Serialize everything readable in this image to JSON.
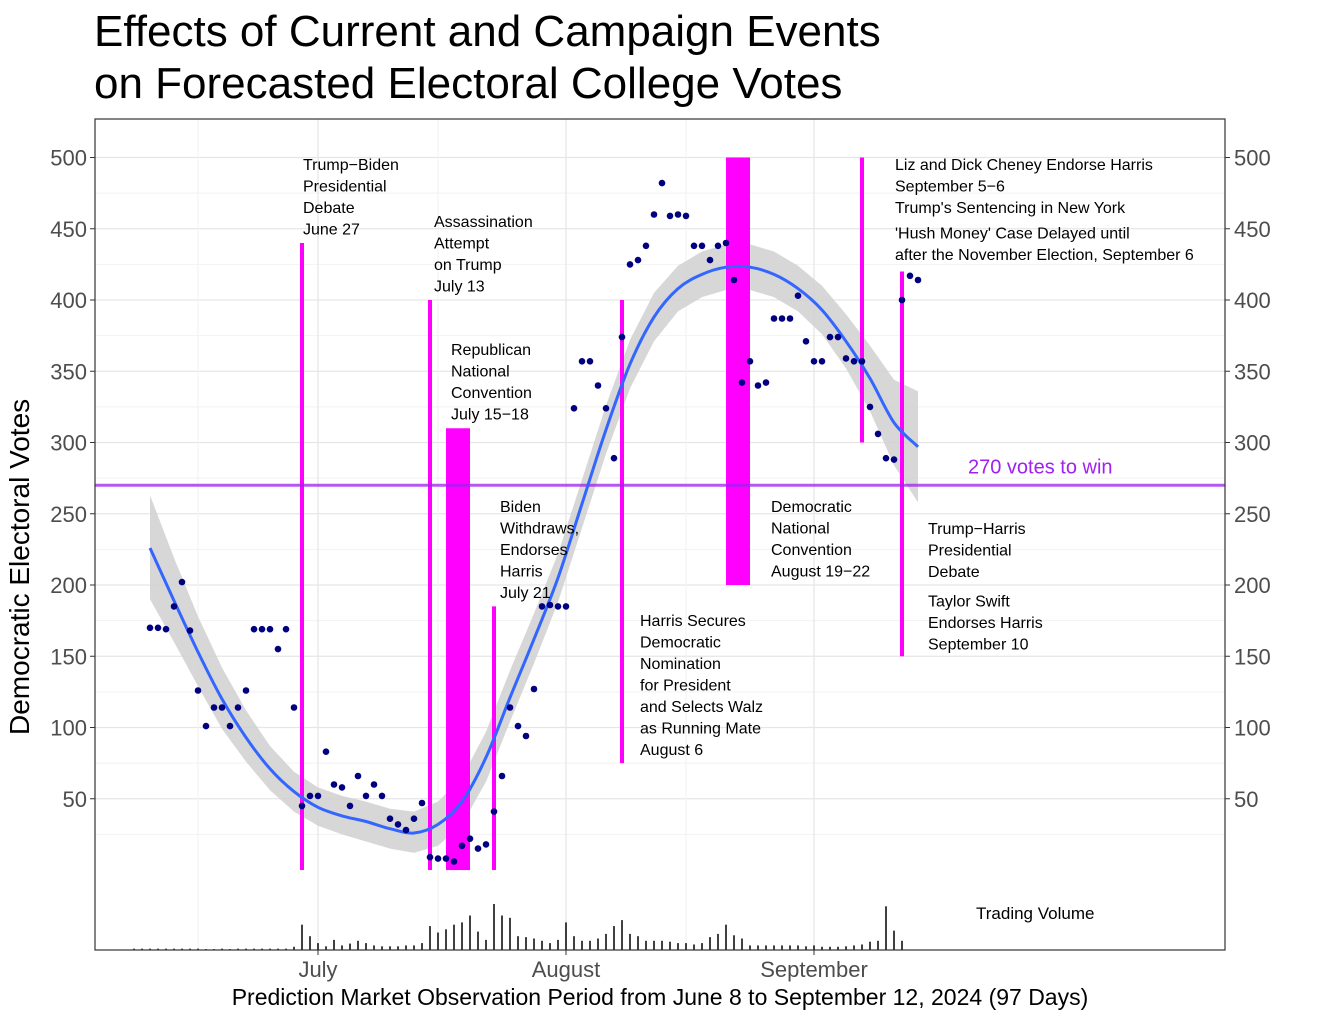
{
  "title_lines": [
    "Effects of Current and Campaign Events",
    "on Forecasted Electoral College Votes"
  ],
  "colors": {
    "event": "#ff00ff",
    "threshold": "#a020f0",
    "points": "#000080",
    "smooth": "#3366ff",
    "band": "#d0d0d0",
    "volume": "#000000"
  },
  "chart_data": {
    "type": "scatter",
    "title": "Effects of Current and Campaign Events on Forecasted Electoral College Votes",
    "xlabel": "Prediction Market Observation Period from June 8 to September 12, 2024 (97 Days)",
    "ylabel": "Democratic Electoral Votes",
    "x_domain": [
      "2024-06-08",
      "2024-09-12"
    ],
    "ylim": [
      -55,
      525
    ],
    "y_ticks": [
      50,
      100,
      150,
      200,
      250,
      300,
      350,
      400,
      450,
      500
    ],
    "x_ticks": [
      {
        "date": "2024-07-01",
        "label": "July"
      },
      {
        "date": "2024-08-01",
        "label": "August"
      },
      {
        "date": "2024-09-01",
        "label": "September"
      }
    ],
    "grid": true,
    "threshold": {
      "value": 270,
      "label": "270 votes to win"
    },
    "points": [
      [
        "2024-06-10",
        170
      ],
      [
        "2024-06-11",
        170
      ],
      [
        "2024-06-12",
        169
      ],
      [
        "2024-06-13",
        185
      ],
      [
        "2024-06-14",
        202
      ],
      [
        "2024-06-15",
        168
      ],
      [
        "2024-06-16",
        126
      ],
      [
        "2024-06-17",
        101
      ],
      [
        "2024-06-18",
        114
      ],
      [
        "2024-06-19",
        114
      ],
      [
        "2024-06-20",
        101
      ],
      [
        "2024-06-21",
        114
      ],
      [
        "2024-06-22",
        126
      ],
      [
        "2024-06-23",
        169
      ],
      [
        "2024-06-24",
        169
      ],
      [
        "2024-06-25",
        169
      ],
      [
        "2024-06-26",
        155
      ],
      [
        "2024-06-27",
        169
      ],
      [
        "2024-06-28",
        114
      ],
      [
        "2024-06-29",
        45
      ],
      [
        "2024-06-30",
        52
      ],
      [
        "2024-07-01",
        52
      ],
      [
        "2024-07-02",
        83
      ],
      [
        "2024-07-03",
        60
      ],
      [
        "2024-07-04",
        58
      ],
      [
        "2024-07-05",
        45
      ],
      [
        "2024-07-06",
        66
      ],
      [
        "2024-07-07",
        52
      ],
      [
        "2024-07-08",
        60
      ],
      [
        "2024-07-09",
        52
      ],
      [
        "2024-07-10",
        36
      ],
      [
        "2024-07-11",
        32
      ],
      [
        "2024-07-12",
        28
      ],
      [
        "2024-07-13",
        36
      ],
      [
        "2024-07-14",
        47
      ],
      [
        "2024-07-15",
        9
      ],
      [
        "2024-07-16",
        8
      ],
      [
        "2024-07-17",
        8
      ],
      [
        "2024-07-18",
        6
      ],
      [
        "2024-07-19",
        17
      ],
      [
        "2024-07-20",
        22
      ],
      [
        "2024-07-21",
        15
      ],
      [
        "2024-07-22",
        18
      ],
      [
        "2024-07-23",
        41
      ],
      [
        "2024-07-24",
        66
      ],
      [
        "2024-07-25",
        114
      ],
      [
        "2024-07-26",
        101
      ],
      [
        "2024-07-27",
        94
      ],
      [
        "2024-07-28",
        127
      ],
      [
        "2024-07-29",
        185
      ],
      [
        "2024-07-30",
        186
      ],
      [
        "2024-07-31",
        185
      ],
      [
        "2024-08-01",
        185
      ],
      [
        "2024-08-02",
        324
      ],
      [
        "2024-08-03",
        357
      ],
      [
        "2024-08-04",
        357
      ],
      [
        "2024-08-05",
        340
      ],
      [
        "2024-08-06",
        324
      ],
      [
        "2024-08-07",
        289
      ],
      [
        "2024-08-08",
        374
      ],
      [
        "2024-08-09",
        425
      ],
      [
        "2024-08-10",
        428
      ],
      [
        "2024-08-11",
        438
      ],
      [
        "2024-08-12",
        460
      ],
      [
        "2024-08-13",
        482
      ],
      [
        "2024-08-14",
        459
      ],
      [
        "2024-08-15",
        460
      ],
      [
        "2024-08-16",
        459
      ],
      [
        "2024-08-17",
        438
      ],
      [
        "2024-08-18",
        438
      ],
      [
        "2024-08-19",
        428
      ],
      [
        "2024-08-20",
        438
      ],
      [
        "2024-08-21",
        440
      ],
      [
        "2024-08-22",
        414
      ],
      [
        "2024-08-23",
        342
      ],
      [
        "2024-08-24",
        357
      ],
      [
        "2024-08-25",
        340
      ],
      [
        "2024-08-26",
        342
      ],
      [
        "2024-08-27",
        387
      ],
      [
        "2024-08-28",
        387
      ],
      [
        "2024-08-29",
        387
      ],
      [
        "2024-08-30",
        403
      ],
      [
        "2024-08-31",
        371
      ],
      [
        "2024-09-01",
        357
      ],
      [
        "2024-09-02",
        357
      ],
      [
        "2024-09-03",
        374
      ],
      [
        "2024-09-04",
        374
      ],
      [
        "2024-09-05",
        359
      ],
      [
        "2024-09-06",
        357
      ],
      [
        "2024-09-07",
        357
      ],
      [
        "2024-09-08",
        325
      ],
      [
        "2024-09-09",
        306
      ],
      [
        "2024-09-10",
        289
      ],
      [
        "2024-09-11",
        288
      ],
      [
        "2024-09-12",
        400
      ],
      [
        "2024-09-13",
        417
      ],
      [
        "2024-09-14",
        414
      ]
    ],
    "smooth": [
      [
        "2024-06-10",
        226
      ],
      [
        "2024-06-13",
        189
      ],
      [
        "2024-06-16",
        153
      ],
      [
        "2024-06-19",
        120
      ],
      [
        "2024-06-22",
        93
      ],
      [
        "2024-06-25",
        71
      ],
      [
        "2024-06-28",
        55
      ],
      [
        "2024-07-01",
        44
      ],
      [
        "2024-07-04",
        38
      ],
      [
        "2024-07-07",
        34
      ],
      [
        "2024-07-10",
        29
      ],
      [
        "2024-07-13",
        26
      ],
      [
        "2024-07-16",
        32
      ],
      [
        "2024-07-19",
        48
      ],
      [
        "2024-07-22",
        79
      ],
      [
        "2024-07-25",
        121
      ],
      [
        "2024-07-28",
        162
      ],
      [
        "2024-07-31",
        205
      ],
      [
        "2024-08-03",
        257
      ],
      [
        "2024-08-06",
        309
      ],
      [
        "2024-08-09",
        355
      ],
      [
        "2024-08-12",
        388
      ],
      [
        "2024-08-15",
        408
      ],
      [
        "2024-08-18",
        418
      ],
      [
        "2024-08-21",
        423
      ],
      [
        "2024-08-24",
        423
      ],
      [
        "2024-08-27",
        418
      ],
      [
        "2024-08-30",
        408
      ],
      [
        "2024-09-02",
        393
      ],
      [
        "2024-09-05",
        371
      ],
      [
        "2024-09-08",
        345
      ],
      [
        "2024-09-11",
        314
      ],
      [
        "2024-09-14",
        297
      ]
    ],
    "band": [
      [
        "2024-06-10",
        190,
        263
      ],
      [
        "2024-06-13",
        160,
        219
      ],
      [
        "2024-06-16",
        129,
        178
      ],
      [
        "2024-06-19",
        99,
        142
      ],
      [
        "2024-06-22",
        76,
        112
      ],
      [
        "2024-06-25",
        56,
        87
      ],
      [
        "2024-06-28",
        41,
        69
      ],
      [
        "2024-07-01",
        31,
        58
      ],
      [
        "2024-07-04",
        25,
        52
      ],
      [
        "2024-07-07",
        20,
        48
      ],
      [
        "2024-07-10",
        15,
        43
      ],
      [
        "2024-07-13",
        12,
        41
      ],
      [
        "2024-07-16",
        17,
        48
      ],
      [
        "2024-07-19",
        32,
        65
      ],
      [
        "2024-07-22",
        62,
        97
      ],
      [
        "2024-07-25",
        104,
        140
      ],
      [
        "2024-07-28",
        145,
        180
      ],
      [
        "2024-07-31",
        188,
        222
      ],
      [
        "2024-08-03",
        240,
        274
      ],
      [
        "2024-08-06",
        292,
        326
      ],
      [
        "2024-08-09",
        338,
        372
      ],
      [
        "2024-08-12",
        371,
        405
      ],
      [
        "2024-08-15",
        392,
        424
      ],
      [
        "2024-08-18",
        402,
        434
      ],
      [
        "2024-08-21",
        407,
        439
      ],
      [
        "2024-08-24",
        407,
        439
      ],
      [
        "2024-08-27",
        402,
        434
      ],
      [
        "2024-08-30",
        392,
        424
      ],
      [
        "2024-09-02",
        376,
        410
      ],
      [
        "2024-09-05",
        352,
        390
      ],
      [
        "2024-09-08",
        322,
        368
      ],
      [
        "2024-09-11",
        284,
        344
      ],
      [
        "2024-09-14",
        258,
        336
      ]
    ],
    "events": [
      {
        "start": "2024-06-29",
        "end": "2024-06-29",
        "ymin": 0,
        "ymax": 440,
        "lines": [
          "Trump−Biden",
          "Presidential",
          "Debate",
          "June 27"
        ]
      },
      {
        "start": "2024-07-15",
        "end": "2024-07-15",
        "ymin": 0,
        "ymax": 400,
        "lines": [
          "Assassination",
          "Attempt",
          "on Trump",
          "July 13"
        ]
      },
      {
        "start": "2024-07-17",
        "end": "2024-07-20",
        "ymin": 0,
        "ymax": 310,
        "lines": [
          "Republican",
          "National",
          "Convention",
          "July 15−18"
        ]
      },
      {
        "start": "2024-07-23",
        "end": "2024-07-23",
        "ymin": 0,
        "ymax": 185,
        "lines": [
          "Biden",
          "Withdraws,",
          "Endorses",
          "Harris",
          "July 21"
        ]
      },
      {
        "start": "2024-08-08",
        "end": "2024-08-08",
        "ymin": 75,
        "ymax": 400,
        "lines": [
          "Harris Secures",
          "Democratic",
          "Nomination",
          "for President",
          "and Selects Walz",
          "as Running Mate",
          "August 6"
        ]
      },
      {
        "start": "2024-08-21",
        "end": "2024-08-24",
        "ymin": 200,
        "ymax": 500,
        "lines": [
          "Democratic",
          "National",
          "Convention",
          "August 19−22"
        ]
      },
      {
        "start": "2024-09-07",
        "end": "2024-09-07",
        "ymin": 300,
        "ymax": 500,
        "lines": [
          "Liz and Dick Cheney Endorse Harris",
          "September 5−6",
          "Trump's Sentencing in New York",
          "'Hush Money' Case Delayed until",
          "after the November Election, September 6"
        ]
      },
      {
        "start": "2024-09-12",
        "end": "2024-09-12",
        "ymin": 150,
        "ymax": 420,
        "lines": [
          "Trump−Harris",
          "Presidential",
          "Debate",
          "Taylor Swift",
          "Endorses Harris",
          "September 10"
        ]
      }
    ],
    "volume": {
      "label": "Trading Volume",
      "values": [
        [
          "2024-06-08",
          0.03
        ],
        [
          "2024-06-09",
          0.03
        ],
        [
          "2024-06-10",
          0.03
        ],
        [
          "2024-06-11",
          0.03
        ],
        [
          "2024-06-12",
          0.03
        ],
        [
          "2024-06-13",
          0.03
        ],
        [
          "2024-06-14",
          0.03
        ],
        [
          "2024-06-15",
          0.03
        ],
        [
          "2024-06-16",
          0.03
        ],
        [
          "2024-06-17",
          0.02
        ],
        [
          "2024-06-18",
          0.02
        ],
        [
          "2024-06-19",
          0.03
        ],
        [
          "2024-06-20",
          0.02
        ],
        [
          "2024-06-21",
          0.03
        ],
        [
          "2024-06-22",
          0.03
        ],
        [
          "2024-06-23",
          0.03
        ],
        [
          "2024-06-24",
          0.03
        ],
        [
          "2024-06-25",
          0.03
        ],
        [
          "2024-06-26",
          0.03
        ],
        [
          "2024-06-27",
          0.03
        ],
        [
          "2024-06-28",
          0.07
        ],
        [
          "2024-06-29",
          0.55
        ],
        [
          "2024-06-30",
          0.3
        ],
        [
          "2024-07-01",
          0.15
        ],
        [
          "2024-07-02",
          0.08
        ],
        [
          "2024-07-03",
          0.22
        ],
        [
          "2024-07-04",
          0.1
        ],
        [
          "2024-07-05",
          0.14
        ],
        [
          "2024-07-06",
          0.2
        ],
        [
          "2024-07-07",
          0.15
        ],
        [
          "2024-07-08",
          0.1
        ],
        [
          "2024-07-09",
          0.08
        ],
        [
          "2024-07-10",
          0.08
        ],
        [
          "2024-07-11",
          0.08
        ],
        [
          "2024-07-12",
          0.1
        ],
        [
          "2024-07-13",
          0.1
        ],
        [
          "2024-07-14",
          0.15
        ],
        [
          "2024-07-15",
          0.52
        ],
        [
          "2024-07-16",
          0.38
        ],
        [
          "2024-07-17",
          0.45
        ],
        [
          "2024-07-18",
          0.55
        ],
        [
          "2024-07-19",
          0.6
        ],
        [
          "2024-07-20",
          0.75
        ],
        [
          "2024-07-21",
          0.4
        ],
        [
          "2024-07-22",
          0.22
        ],
        [
          "2024-07-23",
          1.0
        ],
        [
          "2024-07-24",
          0.75
        ],
        [
          "2024-07-25",
          0.7
        ],
        [
          "2024-07-26",
          0.3
        ],
        [
          "2024-07-27",
          0.28
        ],
        [
          "2024-07-28",
          0.25
        ],
        [
          "2024-07-29",
          0.2
        ],
        [
          "2024-07-30",
          0.15
        ],
        [
          "2024-07-31",
          0.22
        ],
        [
          "2024-08-01",
          0.6
        ],
        [
          "2024-08-02",
          0.3
        ],
        [
          "2024-08-03",
          0.2
        ],
        [
          "2024-08-04",
          0.2
        ],
        [
          "2024-08-05",
          0.25
        ],
        [
          "2024-08-06",
          0.35
        ],
        [
          "2024-08-07",
          0.52
        ],
        [
          "2024-08-08",
          0.65
        ],
        [
          "2024-08-09",
          0.35
        ],
        [
          "2024-08-10",
          0.3
        ],
        [
          "2024-08-11",
          0.2
        ],
        [
          "2024-08-12",
          0.2
        ],
        [
          "2024-08-13",
          0.2
        ],
        [
          "2024-08-14",
          0.18
        ],
        [
          "2024-08-15",
          0.15
        ],
        [
          "2024-08-16",
          0.15
        ],
        [
          "2024-08-17",
          0.12
        ],
        [
          "2024-08-18",
          0.15
        ],
        [
          "2024-08-19",
          0.28
        ],
        [
          "2024-08-20",
          0.35
        ],
        [
          "2024-08-21",
          0.55
        ],
        [
          "2024-08-22",
          0.32
        ],
        [
          "2024-08-23",
          0.25
        ],
        [
          "2024-08-24",
          0.1
        ],
        [
          "2024-08-25",
          0.1
        ],
        [
          "2024-08-26",
          0.1
        ],
        [
          "2024-08-27",
          0.1
        ],
        [
          "2024-08-28",
          0.1
        ],
        [
          "2024-08-29",
          0.1
        ],
        [
          "2024-08-30",
          0.1
        ],
        [
          "2024-08-31",
          0.08
        ],
        [
          "2024-09-01",
          0.1
        ],
        [
          "2024-09-02",
          0.07
        ],
        [
          "2024-09-03",
          0.07
        ],
        [
          "2024-09-04",
          0.07
        ],
        [
          "2024-09-05",
          0.08
        ],
        [
          "2024-09-06",
          0.1
        ],
        [
          "2024-09-07",
          0.12
        ],
        [
          "2024-09-08",
          0.18
        ],
        [
          "2024-09-09",
          0.2
        ],
        [
          "2024-09-10",
          0.95
        ],
        [
          "2024-09-11",
          0.42
        ],
        [
          "2024-09-12",
          0.2
        ]
      ]
    }
  }
}
